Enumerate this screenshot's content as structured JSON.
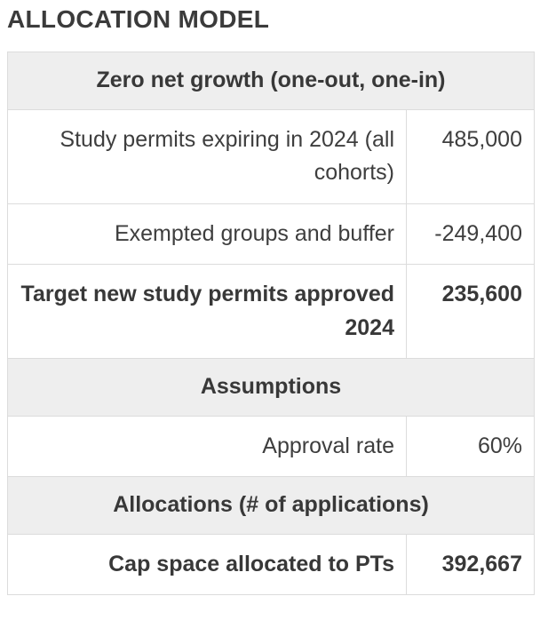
{
  "title": "ALLOCATION MODEL",
  "table": {
    "rows": [
      {
        "type": "header",
        "label": "Zero net growth (one-out, one-in)"
      },
      {
        "type": "data",
        "label": "Study permits expiring in 2024 (all cohorts)",
        "value": "485,000",
        "bold": false
      },
      {
        "type": "data",
        "label": "Exempted groups and buffer",
        "value": "-249,400",
        "bold": false
      },
      {
        "type": "data",
        "label": "Target new study permits approved 2024",
        "value": "235,600",
        "bold": true
      },
      {
        "type": "header",
        "label": "Assumptions"
      },
      {
        "type": "data",
        "label": "Approval rate",
        "value": "60%",
        "bold": false
      },
      {
        "type": "header",
        "label": "Allocations (# of applications)"
      },
      {
        "type": "data",
        "label": "Cap space allocated to PTs",
        "value": "392,667",
        "bold": true
      }
    ]
  },
  "colors": {
    "section_header_bg": "#eeeeee",
    "border": "#dcdcdc",
    "text": "#3a3a3a",
    "background": "#ffffff"
  },
  "chart_data": {
    "type": "table",
    "title": "ALLOCATION MODEL",
    "columns": [
      "Item",
      "Value"
    ],
    "sections": [
      {
        "header": "Zero net growth (one-out, one-in)",
        "rows": [
          {
            "label": "Study permits expiring in 2024 (all cohorts)",
            "value": 485000
          },
          {
            "label": "Exempted groups and buffer",
            "value": -249400
          },
          {
            "label": "Target new study permits approved 2024",
            "value": 235600,
            "emphasis": true
          }
        ]
      },
      {
        "header": "Assumptions",
        "rows": [
          {
            "label": "Approval rate",
            "value": "60%"
          }
        ]
      },
      {
        "header": "Allocations (# of applications)",
        "rows": [
          {
            "label": "Cap space allocated to PTs",
            "value": 392667,
            "emphasis": true
          }
        ]
      }
    ]
  }
}
